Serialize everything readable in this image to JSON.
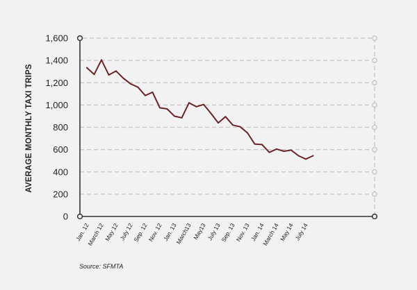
{
  "chart_data": {
    "type": "line",
    "ylabel": "AVERAGE MONTHLY TAXI TRIPS",
    "source": "Source: SFMTA",
    "ylim": [
      0,
      1600
    ],
    "yticks": [
      "0",
      "200",
      "400",
      "600",
      "800",
      "1,000",
      "1,200",
      "1,400",
      "1,600"
    ],
    "ytick_values": [
      0,
      200,
      400,
      600,
      800,
      1000,
      1200,
      1400,
      1600
    ],
    "grid": true,
    "x_tick_labels": [
      "Jan. 12",
      "March 12",
      "May 12",
      "July 12",
      "Sep. 12",
      "Nov. 12",
      "Jan. 13",
      "March13",
      "May13",
      "July 13",
      "Sep. 13",
      "Nov. 13",
      "Jan. 14",
      "March 14",
      "May 14",
      "July 14"
    ],
    "colors": {
      "line": "#6b2327",
      "grid": "#c4c4c4",
      "axis": "#333333",
      "background": "#f2f2f2"
    },
    "series": [
      {
        "x": [
          "2012-01",
          "2012-02",
          "2012-03",
          "2012-04",
          "2012-05",
          "2012-06",
          "2012-07",
          "2012-08",
          "2012-09",
          "2012-10",
          "2012-11",
          "2012-12",
          "2013-01",
          "2013-02",
          "2013-03",
          "2013-04",
          "2013-05",
          "2013-06",
          "2013-07",
          "2013-08",
          "2013-09",
          "2013-10",
          "2013-11",
          "2013-12",
          "2014-01",
          "2014-02",
          "2014-03",
          "2014-04",
          "2014-05",
          "2014-06",
          "2014-07",
          "2014-08"
        ],
        "values": [
          1335,
          1275,
          1405,
          1270,
          1305,
          1240,
          1190,
          1160,
          1085,
          1115,
          975,
          965,
          900,
          885,
          1020,
          985,
          1005,
          925,
          840,
          895,
          820,
          805,
          750,
          650,
          645,
          575,
          605,
          585,
          595,
          545,
          515,
          545
        ]
      }
    ]
  }
}
